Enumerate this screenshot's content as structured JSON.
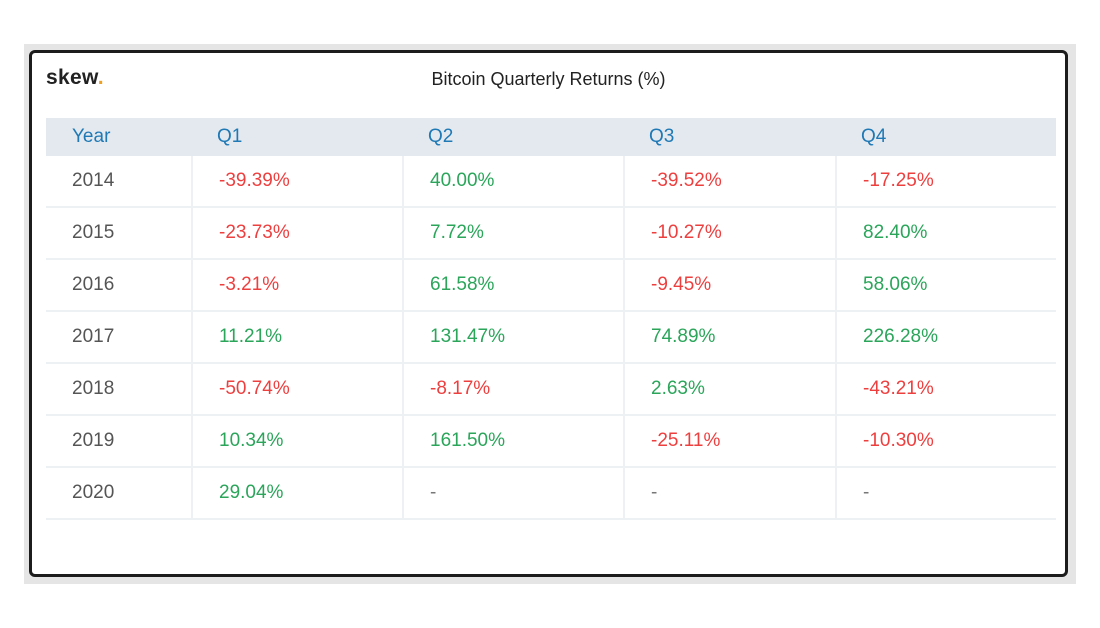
{
  "brand": {
    "name": "skew",
    "dot": ".",
    "dot_color": "#f0a020"
  },
  "chart_data": {
    "type": "table",
    "title": "Bitcoin Quarterly Returns (%)",
    "columns": [
      "Year",
      "Q1",
      "Q2",
      "Q3",
      "Q4"
    ],
    "rows": [
      {
        "year": "2014",
        "values": [
          "-39.39%",
          "40.00%",
          "-39.52%",
          "-17.25%"
        ]
      },
      {
        "year": "2015",
        "values": [
          "-23.73%",
          "7.72%",
          "-10.27%",
          "82.40%"
        ]
      },
      {
        "year": "2016",
        "values": [
          "-3.21%",
          "61.58%",
          "-9.45%",
          "58.06%"
        ]
      },
      {
        "year": "2017",
        "values": [
          "11.21%",
          "131.47%",
          "74.89%",
          "226.28%"
        ]
      },
      {
        "year": "2018",
        "values": [
          "-50.74%",
          "-8.17%",
          "2.63%",
          "-43.21%"
        ]
      },
      {
        "year": "2019",
        "values": [
          "10.34%",
          "161.50%",
          "-25.11%",
          "-10.30%"
        ]
      },
      {
        "year": "2020",
        "values": [
          "29.04%",
          "-",
          "-",
          "-"
        ]
      }
    ],
    "colors": {
      "positive": "#2aa55a",
      "negative": "#ee3f3f",
      "header": "#1f79b5",
      "header_bg": "#e4e9ef"
    }
  }
}
